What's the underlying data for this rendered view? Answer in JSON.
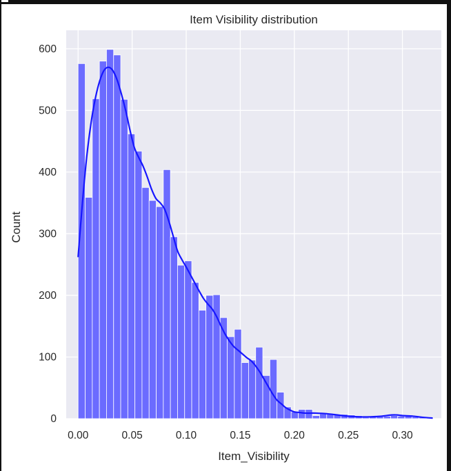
{
  "chart_data": {
    "type": "bar",
    "title": "Item Visibility distribution",
    "xlabel": "Item_Visibility",
    "ylabel": "Count",
    "xlim": [
      -0.011,
      0.336
    ],
    "ylim": [
      0,
      630
    ],
    "xticks": [
      "0.00",
      "0.05",
      "0.10",
      "0.15",
      "0.20",
      "0.25",
      "0.30"
    ],
    "xtick_values": [
      0.0,
      0.05,
      0.1,
      0.15,
      0.2,
      0.25,
      0.3
    ],
    "yticks": [
      "0",
      "100",
      "200",
      "300",
      "400",
      "500",
      "600"
    ],
    "ytick_values": [
      0,
      100,
      200,
      300,
      400,
      500,
      600
    ],
    "grid": true,
    "bin_width": 0.00657,
    "bin_start": 0.0,
    "histogram_counts": [
      576,
      359,
      519,
      580,
      599,
      590,
      518,
      462,
      434,
      375,
      354,
      344,
      404,
      295,
      249,
      256,
      221,
      176,
      200,
      201,
      164,
      133,
      145,
      91,
      95,
      116,
      70,
      96,
      43,
      19,
      11,
      15,
      15,
      5,
      8,
      8,
      7,
      7,
      6,
      5,
      2,
      4,
      5,
      4,
      5,
      4,
      4,
      3,
      3,
      2
    ],
    "kde_x": [
      0.0,
      0.004,
      0.008,
      0.012,
      0.016,
      0.02,
      0.024,
      0.028,
      0.032,
      0.036,
      0.04,
      0.044,
      0.048,
      0.052,
      0.056,
      0.06,
      0.064,
      0.068,
      0.072,
      0.076,
      0.08,
      0.084,
      0.088,
      0.092,
      0.096,
      0.1,
      0.104,
      0.108,
      0.112,
      0.116,
      0.12,
      0.124,
      0.128,
      0.132,
      0.136,
      0.14,
      0.144,
      0.148,
      0.152,
      0.156,
      0.16,
      0.164,
      0.168,
      0.172,
      0.176,
      0.18,
      0.184,
      0.188,
      0.192,
      0.196,
      0.2,
      0.205,
      0.21,
      0.215,
      0.22,
      0.23,
      0.24,
      0.25,
      0.26,
      0.27,
      0.28,
      0.29,
      0.295,
      0.3,
      0.31,
      0.32,
      0.328
    ],
    "kde_y": [
      262,
      350,
      425,
      480,
      520,
      548,
      565,
      570,
      565,
      550,
      527,
      500,
      468,
      440,
      424,
      410,
      392,
      372,
      357,
      350,
      340,
      320,
      296,
      272,
      258,
      246,
      233,
      220,
      207,
      195,
      186,
      178,
      166,
      151,
      137,
      126,
      117,
      111,
      105,
      99,
      94,
      86,
      76,
      64,
      52,
      40,
      30,
      24,
      18,
      14,
      11,
      10,
      9,
      9,
      9,
      8,
      6,
      4,
      3,
      3,
      4,
      6,
      6,
      5,
      4,
      2,
      1
    ],
    "bar_color": "#6b6bff",
    "bar_edge_color": "#ffffff",
    "kde_color": "#1717ff",
    "plot_background": "#eaeaf2",
    "grid_color": "#ffffff",
    "text_color": "#262626"
  }
}
